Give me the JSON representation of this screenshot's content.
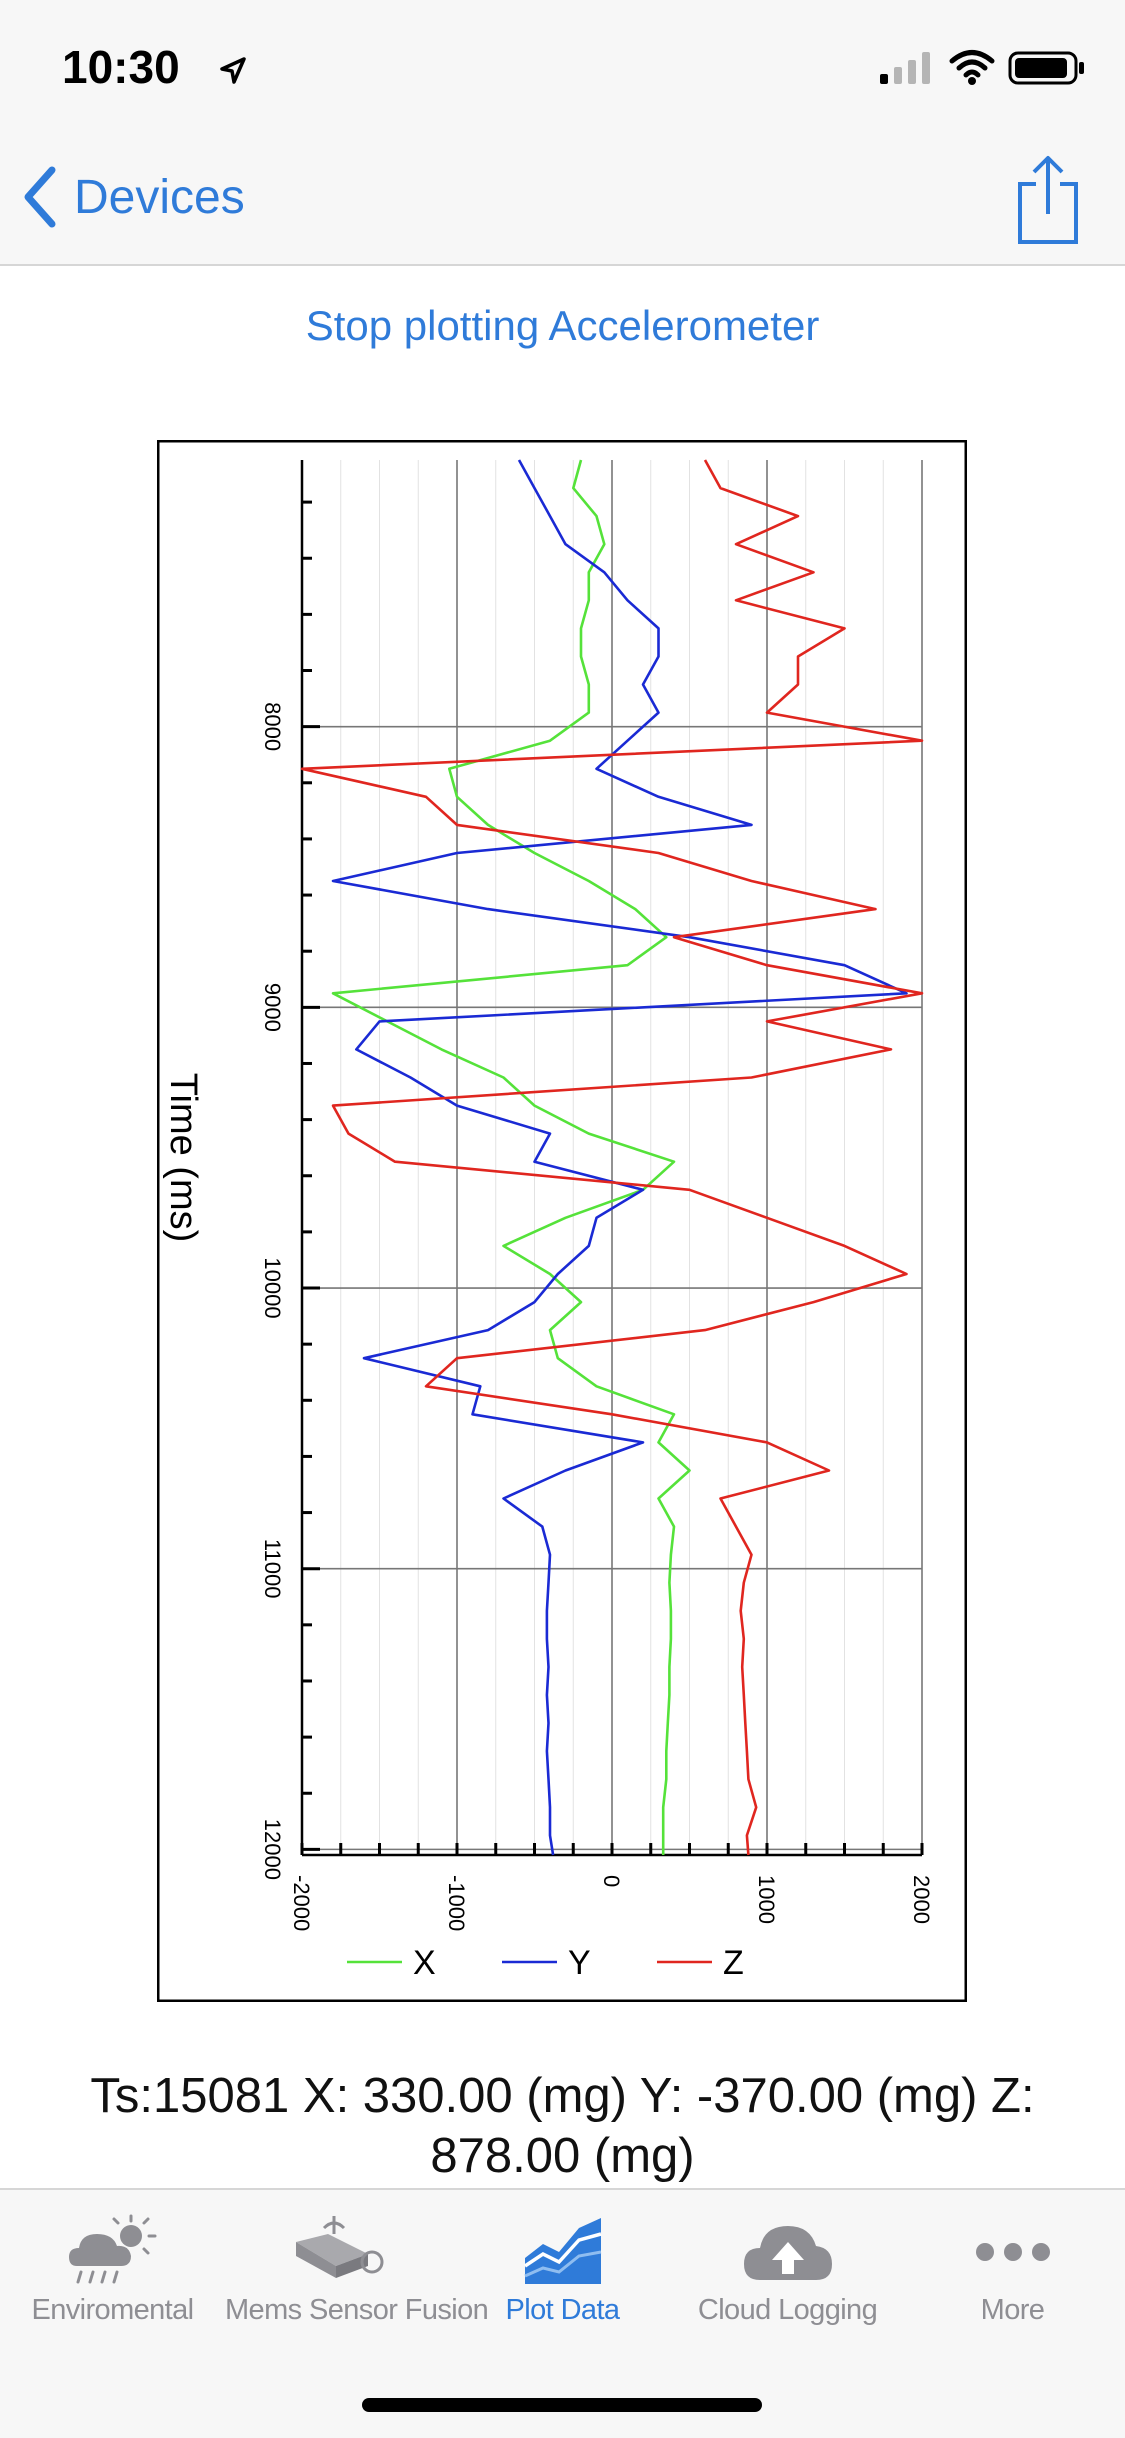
{
  "status_bar": {
    "time": "10:30"
  },
  "nav": {
    "back_label": "Devices",
    "share_icon": "share-icon"
  },
  "action": {
    "label": "Stop plotting Accelerometer"
  },
  "chart_data": {
    "type": "line",
    "title": "",
    "xlabel": "Time (ms)",
    "ylabel": "",
    "xlim": [
      7050,
      12020
    ],
    "ylim": [
      -2000,
      2000
    ],
    "x_ticks": [
      8000,
      9000,
      10000,
      11000,
      12000
    ],
    "y_ticks": [
      -2000,
      -1000,
      0,
      1000,
      2000
    ],
    "grid": true,
    "legend_position": "bottom",
    "orientation": "rotated-90",
    "x": [
      7050,
      7150,
      7250,
      7350,
      7450,
      7550,
      7650,
      7750,
      7850,
      7950,
      8050,
      8150,
      8250,
      8350,
      8450,
      8550,
      8650,
      8750,
      8850,
      8950,
      9050,
      9150,
      9250,
      9350,
      9450,
      9550,
      9650,
      9750,
      9850,
      9950,
      10050,
      10150,
      10250,
      10350,
      10450,
      10550,
      10650,
      10750,
      10850,
      10950,
      11050,
      11150,
      11250,
      11350,
      11450,
      11550,
      11650,
      11750,
      11850,
      11950,
      12020
    ],
    "series": [
      {
        "name": "X",
        "color": "#55e23a",
        "values": [
          -200,
          -250,
          -100,
          -50,
          -150,
          -150,
          -200,
          -200,
          -150,
          -150,
          -400,
          -1050,
          -1000,
          -800,
          -500,
          -150,
          150,
          350,
          100,
          -1800,
          -1450,
          -1100,
          -700,
          -500,
          -150,
          400,
          200,
          -300,
          -700,
          -400,
          -200,
          -400,
          -350,
          -100,
          400,
          300,
          500,
          300,
          400,
          380,
          370,
          380,
          380,
          370,
          370,
          360,
          350,
          350,
          330,
          330,
          330
        ]
      },
      {
        "name": "Y",
        "color": "#1a2ad4",
        "values": [
          -600,
          -500,
          -400,
          -300,
          -50,
          100,
          300,
          300,
          200,
          300,
          100,
          -100,
          300,
          900,
          -1000,
          -1800,
          -800,
          500,
          1500,
          1900,
          -1500,
          -1650,
          -1300,
          -1000,
          -400,
          -500,
          200,
          -100,
          -150,
          -350,
          -500,
          -800,
          -1600,
          -850,
          -900,
          200,
          -300,
          -700,
          -450,
          -400,
          -410,
          -420,
          -420,
          -410,
          -420,
          -410,
          -420,
          -410,
          -400,
          -400,
          -380
        ]
      },
      {
        "name": "Z",
        "color": "#e0261f",
        "values": [
          600,
          700,
          1200,
          800,
          1300,
          800,
          1500,
          1200,
          1200,
          1000,
          2000,
          -2000,
          -1200,
          -1000,
          300,
          900,
          1700,
          400,
          1000,
          2000,
          1000,
          1800,
          900,
          -1800,
          -1700,
          -1400,
          500,
          1000,
          1500,
          1900,
          1300,
          600,
          -1000,
          -1200,
          0,
          1000,
          1400,
          700,
          800,
          900,
          850,
          830,
          850,
          840,
          850,
          860,
          870,
          880,
          930,
          870,
          880
        ]
      }
    ]
  },
  "reading": {
    "text": "Ts:15081 X:  330.00 (mg) Y: -370.00 (mg) Z: 878.00 (mg)"
  },
  "tabs": [
    {
      "label": "Enviromental",
      "icon": "weather-icon",
      "active": false
    },
    {
      "label": "Mems Sensor Fusion",
      "icon": "cube-fusion-icon",
      "active": false
    },
    {
      "label": "Plot Data",
      "icon": "plot-chart-icon",
      "active": true
    },
    {
      "label": "Cloud Logging",
      "icon": "cloud-upload-icon",
      "active": false
    },
    {
      "label": "More",
      "icon": "more-dots-icon",
      "active": false
    }
  ]
}
